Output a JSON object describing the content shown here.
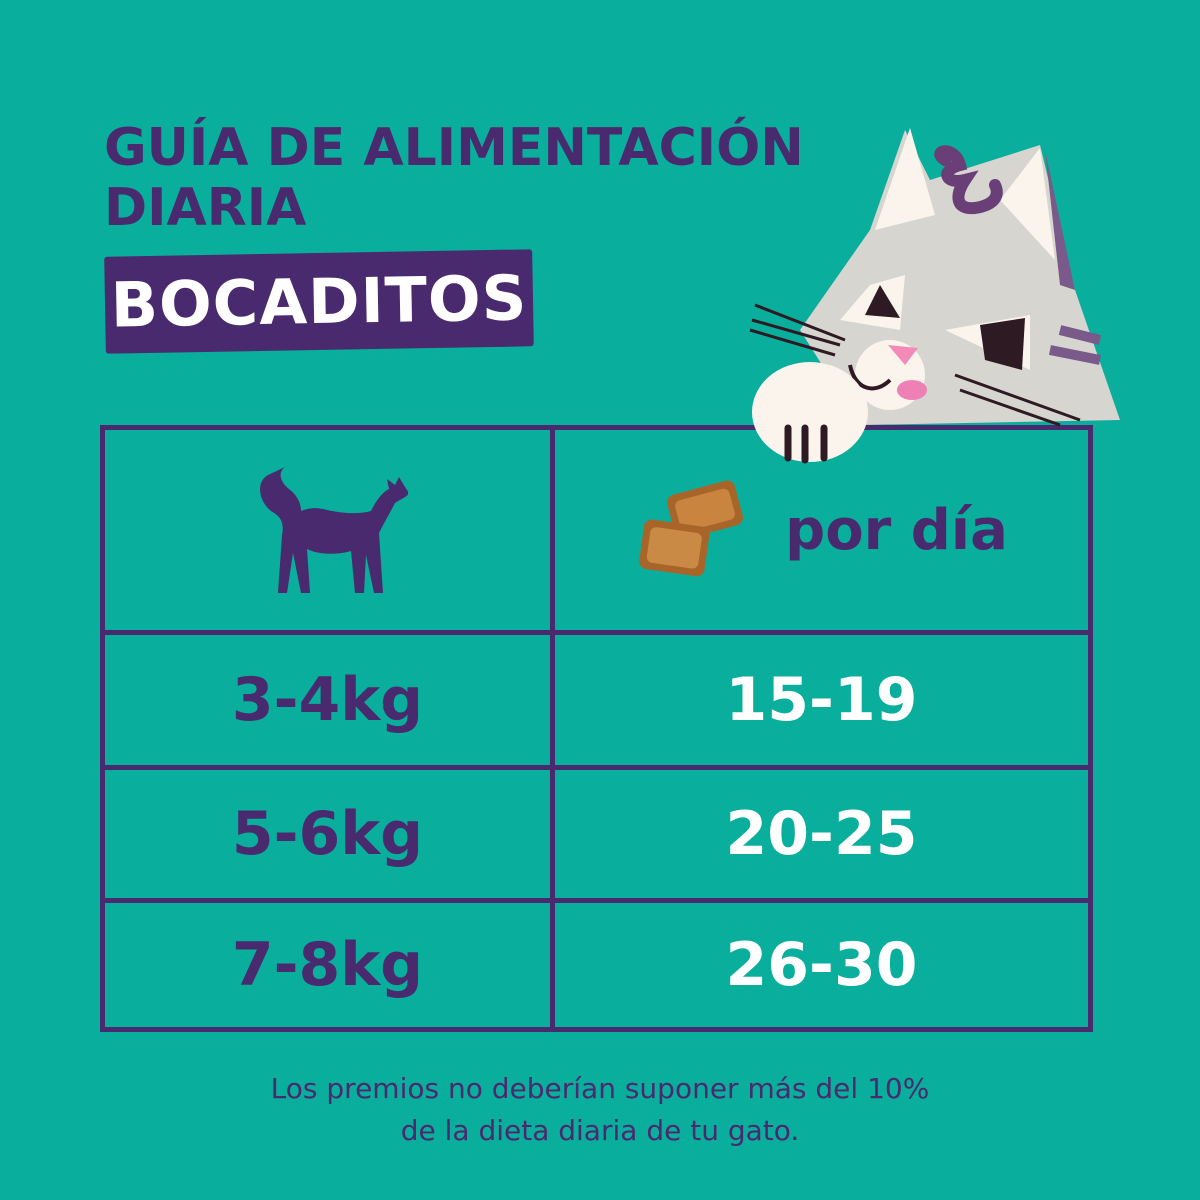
{
  "header": {
    "title_line1": "Guía de alimentación",
    "title_line2": "diaria",
    "badge": "BOCADITOS"
  },
  "table": {
    "header": {
      "left_icon": "cat-silhouette-icon",
      "right_icon": "treat-pillows-icon",
      "right_label": "por día"
    },
    "rows": [
      {
        "weight": "3-4kg",
        "amount": "15-19"
      },
      {
        "weight": "5-6kg",
        "amount": "20-25"
      },
      {
        "weight": "7-8kg",
        "amount": "26-30"
      }
    ]
  },
  "footer": {
    "line1": "Los premios no deberían suponer más del 10%",
    "line2": "de la dieta diaria de tu gato."
  },
  "colors": {
    "background": "#0aae9c",
    "purple": "#4a2a6e",
    "white": "#ffffff"
  }
}
